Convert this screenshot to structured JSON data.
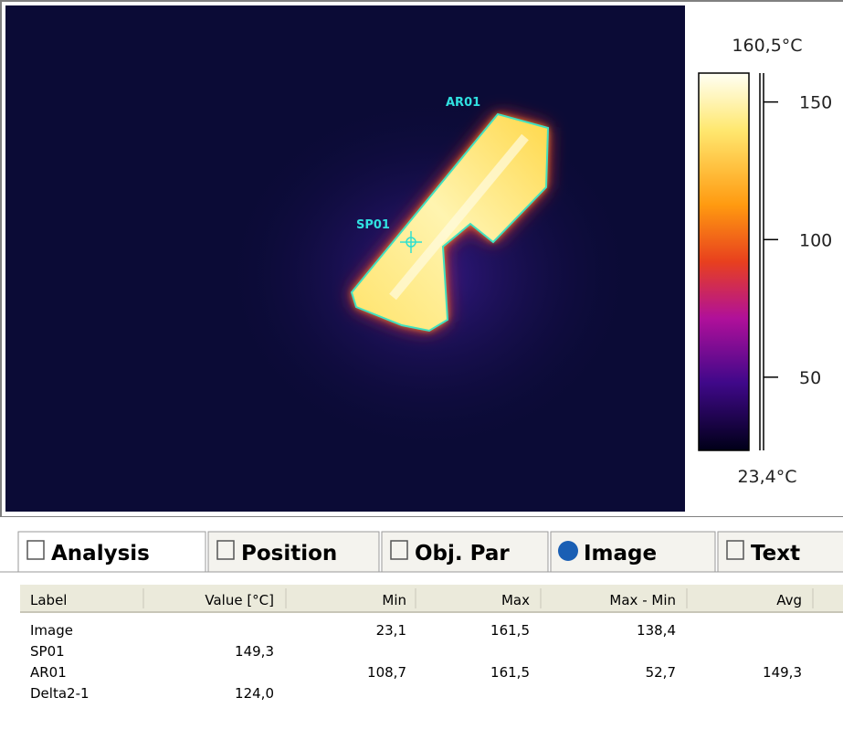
{
  "thermal_image": {
    "area_label": "AR01",
    "spot_label": "SP01"
  },
  "color_scale": {
    "max": {
      "value": 160.5,
      "label": "160,5°C"
    },
    "min": {
      "value": 23.4,
      "label": "23,4°C"
    },
    "ticks": [
      150,
      100,
      50
    ]
  },
  "tabs": [
    "Analysis",
    "Position",
    "Obj. Par",
    "Image",
    "Text"
  ],
  "table": {
    "columns": [
      "Label",
      "Value [°C]",
      "Min",
      "Max",
      "Max - Min",
      "Avg"
    ],
    "rows": [
      [
        "Image",
        null,
        "23,1",
        "161,5",
        "138,4",
        null
      ],
      [
        "SP01",
        "149,3",
        null,
        null,
        null,
        null
      ],
      [
        "AR01",
        null,
        "108,7",
        "161,5",
        "52,7",
        "149,3"
      ],
      [
        "Delta2-1",
        "124,0",
        null,
        null,
        null,
        null
      ]
    ]
  }
}
